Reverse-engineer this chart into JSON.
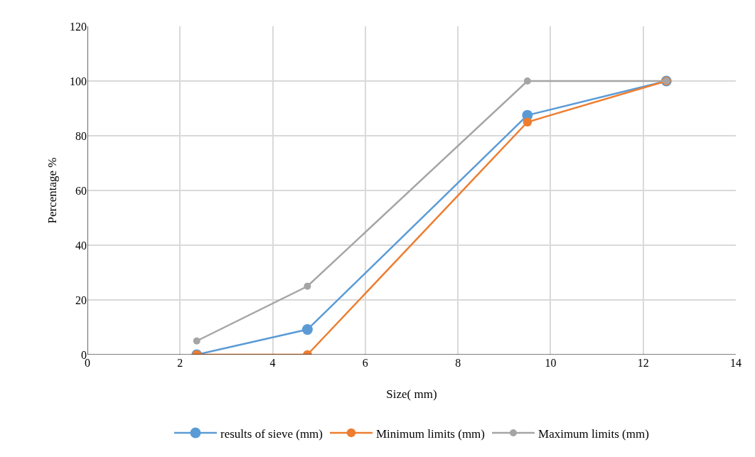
{
  "chart_data": {
    "type": "line",
    "xlabel": "Size( mm)",
    "ylabel": "Percentage %",
    "xlim": [
      0,
      14
    ],
    "xticks": [
      0,
      2,
      4,
      6,
      8,
      10,
      12,
      14
    ],
    "ylim": [
      0,
      120
    ],
    "yticks": [
      0,
      20,
      40,
      60,
      80,
      100,
      120
    ],
    "grid": true,
    "legend": "bottom",
    "marker": "circle",
    "line_style": "solid",
    "x": [
      2.36,
      4.75,
      9.5,
      12.5
    ],
    "series": [
      {
        "name": "results of sieve (mm)",
        "color": "#5b9bd5",
        "values": [
          0,
          9.2,
          87.5,
          100
        ]
      },
      {
        "name": "Minimum limits (mm)",
        "color": "#ed7d31",
        "values": [
          0,
          0,
          85,
          100
        ]
      },
      {
        "name": "Maximum limits (mm)",
        "color": "#a5a5a5",
        "values": [
          5,
          25,
          100,
          100
        ]
      }
    ]
  }
}
